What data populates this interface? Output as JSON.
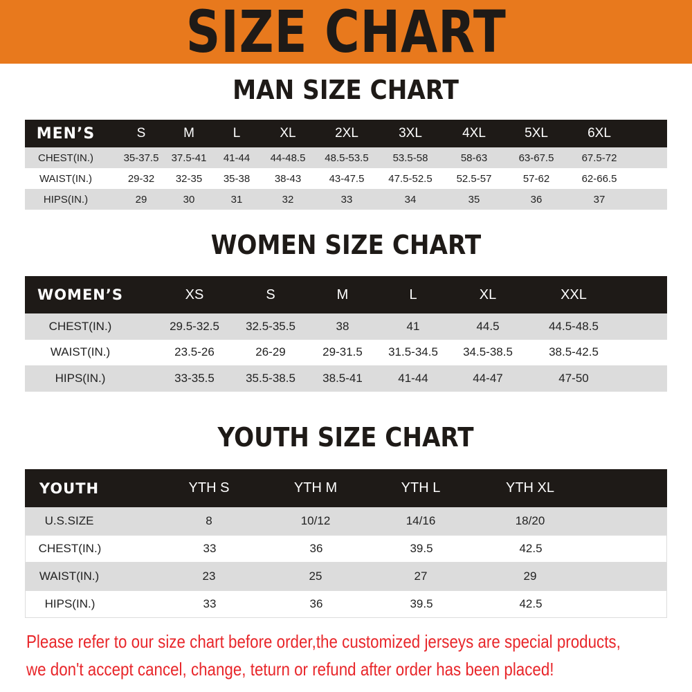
{
  "title": "SIZE CHART",
  "colors": {
    "banner": "#E8791D",
    "header_bg": "#1e1a17",
    "row_gray": "#dcdcdc",
    "notice": "#e8262a"
  },
  "men": {
    "title": "MAN SIZE CHART",
    "header": [
      "MEN’S",
      "S",
      "M",
      "L",
      "XL",
      "2XL",
      "3XL",
      "4XL",
      "5XL",
      "6XL"
    ],
    "rows": [
      [
        "CHEST(IN.)",
        "35-37.5",
        "37.5-41",
        "41-44",
        "44-48.5",
        "48.5-53.5",
        "53.5-58",
        "58-63",
        "63-67.5",
        "67.5-72"
      ],
      [
        "WAIST(IN.)",
        "29-32",
        "32-35",
        "35-38",
        "38-43",
        "43-47.5",
        "47.5-52.5",
        "52.5-57",
        "57-62",
        "62-66.5"
      ],
      [
        "HIPS(IN.)",
        "29",
        "30",
        "31",
        "32",
        "33",
        "34",
        "35",
        "36",
        "37"
      ]
    ]
  },
  "women": {
    "title": "WOMEN SIZE CHART",
    "header": [
      "WOMEN’S",
      "XS",
      "S",
      "M",
      "L",
      "XL",
      "XXL"
    ],
    "rows": [
      [
        "CHEST(IN.)",
        "29.5-32.5",
        "32.5-35.5",
        "38",
        "41",
        "44.5",
        "44.5-48.5"
      ],
      [
        "WAIST(IN.)",
        "23.5-26",
        "26-29",
        "29-31.5",
        "31.5-34.5",
        "34.5-38.5",
        "38.5-42.5"
      ],
      [
        "HIPS(IN.)",
        "33-35.5",
        "35.5-38.5",
        "38.5-41",
        "41-44",
        "44-47",
        "47-50"
      ]
    ]
  },
  "youth": {
    "title": "YOUTH SIZE CHART",
    "header": [
      "YOUTH",
      "YTH S",
      "YTH M",
      "YTH L",
      "YTH XL"
    ],
    "rows": [
      [
        "U.S.SIZE",
        "8",
        "10/12",
        "14/16",
        "18/20"
      ],
      [
        "CHEST(IN.)",
        "33",
        "36",
        "39.5",
        "42.5"
      ],
      [
        "WAIST(IN.)",
        "23",
        "25",
        "27",
        "29"
      ],
      [
        "HIPS(IN.)",
        "33",
        "36",
        "39.5",
        "42.5"
      ]
    ]
  },
  "notice": [
    "Please refer to our size chart before order,the customized jerseys are special products,",
    "we don't accept cancel, change, teturn or refund after order has been placed!"
  ]
}
